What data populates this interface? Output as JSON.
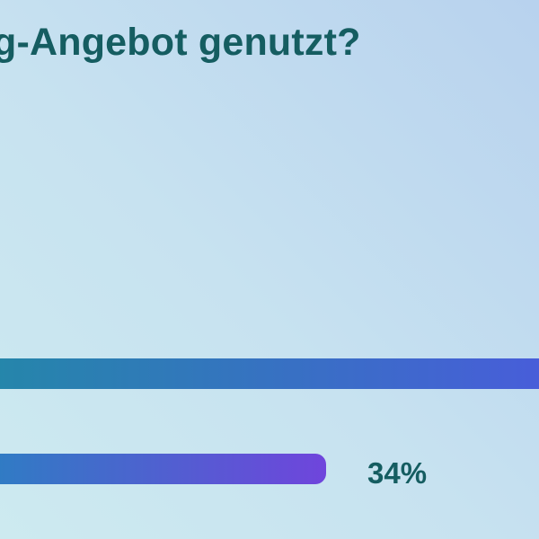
{
  "background": {
    "gradient_from": "#cdeaf0",
    "gradient_to": "#b8d2ee"
  },
  "text_color": "#155d61",
  "chart_data": {
    "type": "bar",
    "orientation": "horizontal",
    "title": "g-Angebot genutzt?",
    "title_clipped_left": true,
    "legend": "none",
    "axes_visible": false,
    "bars": [
      {
        "value_label": "",
        "value": null,
        "clipped": "both-sides",
        "gradient": [
          "#2487a9",
          "#4a5bdc"
        ]
      },
      {
        "value_label": "34%",
        "value": 34,
        "clipped": "left",
        "gradient": [
          "#2d7ec3",
          "#6f45dc"
        ]
      }
    ]
  }
}
